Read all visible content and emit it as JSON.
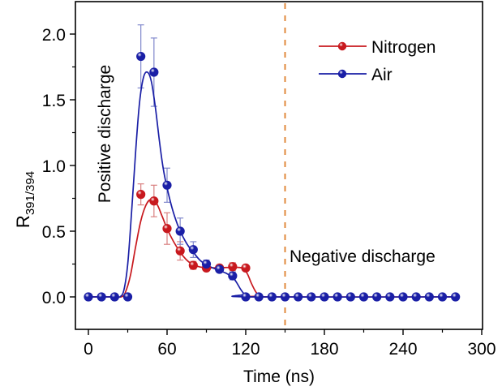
{
  "chart_data": {
    "type": "line",
    "title": "",
    "xlabel": "Time (ns)",
    "ylabel": {
      "main": "R",
      "subscript": "391/394"
    },
    "xlim": [
      -10,
      300
    ],
    "ylim": [
      -0.25,
      2.24
    ],
    "xticks": [
      0,
      60,
      120,
      180,
      240,
      300
    ],
    "xtick_labels": [
      "0",
      "60",
      "120",
      "180",
      "240",
      "300"
    ],
    "xminor": [
      30,
      90,
      150,
      210,
      270
    ],
    "yticks": [
      0.0,
      0.5,
      1.0,
      1.5,
      2.0
    ],
    "ytick_labels": [
      "0.0",
      "0.5",
      "1.0",
      "1.5",
      "2.0"
    ],
    "yminor": [
      0.25,
      0.75,
      1.25,
      1.75
    ],
    "grid": false,
    "legend": {
      "placement": "top-right",
      "entries": [
        "Nitrogen",
        "Air"
      ]
    },
    "annotations": [
      {
        "id": "positive",
        "text": "Positive discharge",
        "x": 5,
        "y": 1.05,
        "rotation": "vertical"
      },
      {
        "id": "negative",
        "text": "Negative discharge",
        "x": 153,
        "y": 0.32,
        "rotation": "horizontal"
      }
    ],
    "vline": {
      "x": 150,
      "style": "dashed",
      "color": "#e08a3c"
    },
    "series": [
      {
        "name": "Nitrogen",
        "color": "#c8191e",
        "errcolor": "#d98080",
        "points": [
          {
            "x": 40,
            "y": 0.78,
            "err": 0.08
          },
          {
            "x": 50,
            "y": 0.73,
            "err": 0.12
          },
          {
            "x": 60,
            "y": 0.52,
            "err": 0.12
          },
          {
            "x": 70,
            "y": 0.35,
            "err": 0.07
          },
          {
            "x": 80,
            "y": 0.24,
            "err": 0.03
          },
          {
            "x": 90,
            "y": 0.22,
            "err": 0.02
          },
          {
            "x": 100,
            "y": 0.22,
            "err": 0.02
          },
          {
            "x": 110,
            "y": 0.23,
            "err": 0.03
          },
          {
            "x": 120,
            "y": 0.22,
            "err": 0.0
          }
        ],
        "fit": [
          [
            0,
            0
          ],
          [
            20,
            0
          ],
          [
            25,
            0.0
          ],
          [
            28,
            0.03
          ],
          [
            32,
            0.16
          ],
          [
            36,
            0.38
          ],
          [
            40,
            0.58
          ],
          [
            44,
            0.7
          ],
          [
            47.5,
            0.74
          ],
          [
            52,
            0.71
          ],
          [
            56,
            0.62
          ],
          [
            60,
            0.52
          ],
          [
            65,
            0.42
          ],
          [
            70,
            0.34
          ],
          [
            75,
            0.28
          ],
          [
            80,
            0.245
          ],
          [
            85,
            0.228
          ],
          [
            90,
            0.222
          ],
          [
            100,
            0.222
          ],
          [
            110,
            0.225
          ],
          [
            117,
            0.22
          ],
          [
            121,
            0.18
          ],
          [
            124,
            0.11
          ],
          [
            127,
            0.05
          ],
          [
            130,
            0.01
          ],
          [
            133,
            0
          ],
          [
            280,
            0
          ]
        ]
      },
      {
        "name": "Air",
        "color": "#1a1fa6",
        "errcolor": "#8088cc",
        "points": [
          {
            "x": 0,
            "y": 0,
            "err": 0
          },
          {
            "x": 10,
            "y": 0,
            "err": 0
          },
          {
            "x": 20,
            "y": 0,
            "err": 0
          },
          {
            "x": 30,
            "y": 0,
            "err": 0
          },
          {
            "x": 40,
            "y": 1.83,
            "err": 0.24
          },
          {
            "x": 50,
            "y": 1.71,
            "err": 0.26
          },
          {
            "x": 60,
            "y": 0.85,
            "err": 0.13
          },
          {
            "x": 70,
            "y": 0.5,
            "err": 0.1
          },
          {
            "x": 80,
            "y": 0.36,
            "err": 0.06
          },
          {
            "x": 90,
            "y": 0.25,
            "err": 0.03
          },
          {
            "x": 100,
            "y": 0.21,
            "err": 0.02
          },
          {
            "x": 110,
            "y": 0.16,
            "err": 0.03
          },
          {
            "x": 120,
            "y": 0,
            "err": 0
          },
          {
            "x": 130,
            "y": 0,
            "err": 0
          },
          {
            "x": 140,
            "y": 0,
            "err": 0
          },
          {
            "x": 150,
            "y": 0,
            "err": 0
          },
          {
            "x": 160,
            "y": 0,
            "err": 0
          },
          {
            "x": 170,
            "y": 0,
            "err": 0
          },
          {
            "x": 180,
            "y": 0,
            "err": 0
          },
          {
            "x": 190,
            "y": 0,
            "err": 0
          },
          {
            "x": 200,
            "y": 0,
            "err": 0
          },
          {
            "x": 210,
            "y": 0,
            "err": 0
          },
          {
            "x": 220,
            "y": 0,
            "err": 0
          },
          {
            "x": 230,
            "y": 0,
            "err": 0
          },
          {
            "x": 240,
            "y": 0,
            "err": 0
          },
          {
            "x": 250,
            "y": 0,
            "err": 0
          },
          {
            "x": 260,
            "y": 0,
            "err": 0
          },
          {
            "x": 270,
            "y": 0,
            "err": 0
          },
          {
            "x": 280,
            "y": 0,
            "err": 0
          }
        ],
        "fit": [
          [
            0,
            0
          ],
          [
            20,
            0
          ],
          [
            24,
            0.0
          ],
          [
            27,
            0.05
          ],
          [
            30,
            0.25
          ],
          [
            33,
            0.65
          ],
          [
            36,
            1.1
          ],
          [
            39,
            1.48
          ],
          [
            42,
            1.67
          ],
          [
            45,
            1.71
          ],
          [
            48,
            1.64
          ],
          [
            51,
            1.45
          ],
          [
            54,
            1.2
          ],
          [
            57,
            0.98
          ],
          [
            60,
            0.83
          ],
          [
            64,
            0.67
          ],
          [
            68,
            0.55
          ],
          [
            72,
            0.46
          ],
          [
            76,
            0.39
          ],
          [
            80,
            0.34
          ],
          [
            85,
            0.28
          ],
          [
            90,
            0.245
          ],
          [
            95,
            0.22
          ],
          [
            100,
            0.2
          ],
          [
            105,
            0.18
          ],
          [
            110,
            0.15
          ],
          [
            113,
            0.11
          ],
          [
            116,
            0.06
          ],
          [
            119,
            0.02
          ],
          [
            122,
            0
          ],
          [
            280,
            0
          ]
        ]
      }
    ]
  }
}
